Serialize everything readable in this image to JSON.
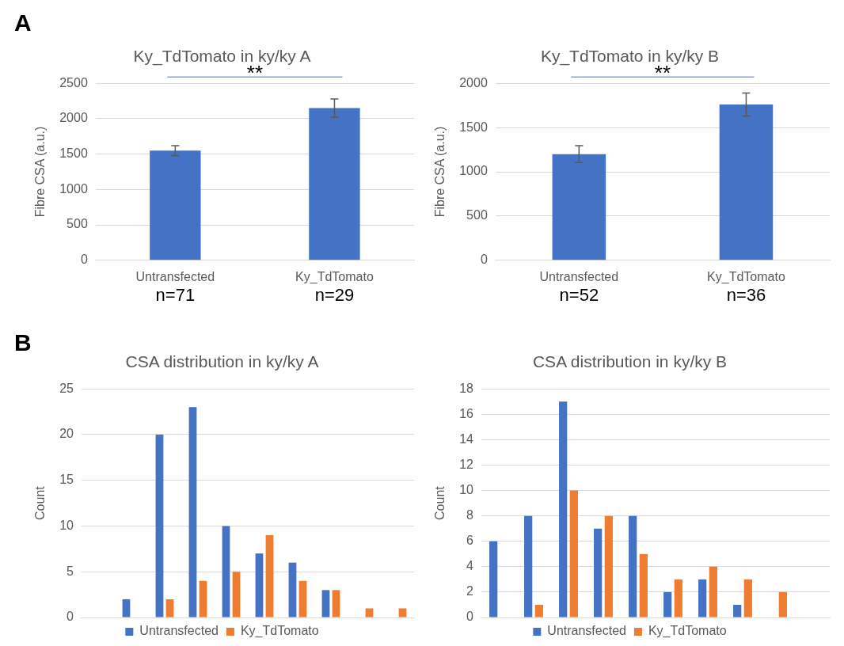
{
  "chart_data": [
    {
      "type": "bar",
      "title": "Ky_TdTomato in ky/ky A",
      "ylabel": "Fibre CSA (a.u.)",
      "categories": [
        "Untransfected",
        "Ky_TdTomato"
      ],
      "values": [
        1550,
        2150
      ],
      "errors": [
        70,
        130
      ],
      "color": "#4472c4",
      "ylim": [
        0,
        2500
      ],
      "yticks": [
        0,
        500,
        1000,
        1500,
        2000,
        2500
      ],
      "grid": "y",
      "annotations": [
        "A",
        "**",
        "n=71",
        "n=29"
      ]
    },
    {
      "type": "bar",
      "title": "Ky_TdTomato in ky/ky B",
      "ylabel": "Fibre CSA (a.u.)",
      "categories": [
        "Untransfected",
        "Ky_TdTomato"
      ],
      "values": [
        1200,
        1760
      ],
      "errors": [
        95,
        130
      ],
      "color": "#4472c4",
      "ylim": [
        0,
        2000
      ],
      "yticks": [
        0,
        500,
        1000,
        1500,
        2000
      ],
      "grid": "y",
      "annotations": [
        "**",
        "n=52",
        "n=36"
      ]
    },
    {
      "type": "bar",
      "title": "CSA distribution in ky/ky A",
      "ylabel": "Count",
      "categories": [
        null,
        null,
        null,
        null,
        null,
        null,
        null,
        null,
        null,
        null
      ],
      "series": [
        {
          "name": "Untransfected",
          "color": "#4472c4",
          "values": [
            null,
            2,
            20,
            23,
            10,
            7,
            6,
            3,
            null,
            null
          ]
        },
        {
          "name": "Ky_TdTomato",
          "color": "#ed7d31",
          "values": [
            null,
            null,
            2,
            4,
            5,
            9,
            4,
            3,
            1,
            1
          ]
        }
      ],
      "ylim": [
        0,
        25
      ],
      "yticks": [
        0,
        5,
        10,
        15,
        20,
        25
      ],
      "grid": "y",
      "legend": "bottom",
      "tick_labels": "y",
      "annotations": [
        "B"
      ]
    },
    {
      "type": "bar",
      "title": "CSA distribution in ky/ky B",
      "ylabel": "Count",
      "categories": [
        null,
        null,
        null,
        null,
        null,
        null,
        null,
        null,
        null,
        null
      ],
      "series": [
        {
          "name": "Untransfected",
          "color": "#4472c4",
          "values": [
            6,
            8,
            17,
            7,
            8,
            2,
            3,
            1,
            null,
            null
          ]
        },
        {
          "name": "Ky_TdTomato",
          "color": "#ed7d31",
          "values": [
            null,
            1,
            10,
            8,
            5,
            3,
            4,
            3,
            2,
            null
          ]
        }
      ],
      "ylim": [
        0,
        18
      ],
      "yticks": [
        0,
        2,
        4,
        6,
        8,
        10,
        12,
        14,
        16,
        18
      ],
      "grid": "y",
      "legend": "bottom",
      "tick_labels": "y"
    }
  ]
}
